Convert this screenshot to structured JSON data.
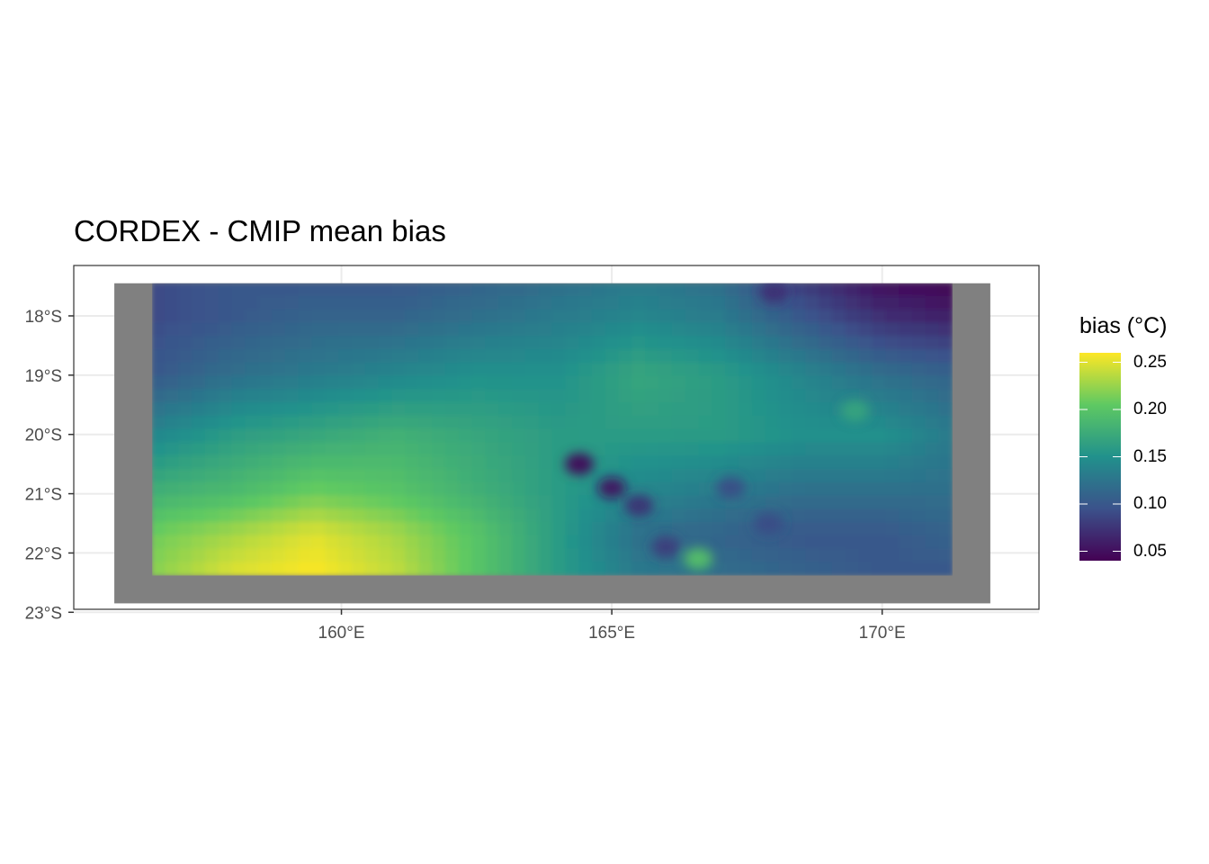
{
  "title": "CORDEX - CMIP mean bias",
  "legend": {
    "title": "bias (°C)",
    "min": 0.04,
    "max": 0.26,
    "breaks": [
      {
        "value": 0.25,
        "label": "0.25"
      },
      {
        "value": 0.2,
        "label": "0.20"
      },
      {
        "value": 0.15,
        "label": "0.15"
      },
      {
        "value": 0.1,
        "label": "0.10"
      },
      {
        "value": 0.05,
        "label": "0.05"
      }
    ],
    "palette": [
      "#440154",
      "#3b528b",
      "#21918c",
      "#5ec962",
      "#fde725"
    ]
  },
  "x_axis": {
    "ticks": [
      {
        "value": 160,
        "label": "160°E"
      },
      {
        "value": 165,
        "label": "165°E"
      },
      {
        "value": 170,
        "label": "170°E"
      }
    ]
  },
  "y_axis": {
    "ticks": [
      {
        "value": -18,
        "label": "18°S"
      },
      {
        "value": -19,
        "label": "19°S"
      },
      {
        "value": -20,
        "label": "20°S"
      },
      {
        "value": -21,
        "label": "21°S"
      },
      {
        "value": -22,
        "label": "22°S"
      },
      {
        "value": -23,
        "label": "23°S"
      }
    ]
  },
  "colors": {
    "masked": "#808080",
    "grid": "#ebebeb",
    "panel_border": "#333333"
  },
  "chart_data": {
    "type": "heatmap",
    "variable": "bias",
    "unit": "°C",
    "lon_range": [
      155.05,
      172.9
    ],
    "lat_range": [
      -22.95,
      -17.15
    ],
    "masked_extent": {
      "lon": [
        155.8,
        172.0
      ],
      "lat": [
        -22.85,
        -17.45
      ]
    },
    "data_extent": {
      "lon": [
        156.5,
        171.3
      ],
      "lat": [
        -22.38,
        -17.45
      ]
    },
    "value_grid": {
      "lons": [
        156.5,
        158.0,
        159.5,
        161.0,
        162.5,
        164.0,
        165.5,
        167.0,
        168.5,
        170.0,
        171.3
      ],
      "lats": [
        -17.45,
        -18.0,
        -19.0,
        -20.0,
        -21.0,
        -21.7,
        -22.38
      ],
      "values": [
        [
          0.09,
          0.1,
          0.1,
          0.1,
          0.11,
          0.12,
          0.13,
          0.12,
          0.08,
          0.05,
          0.04
        ],
        [
          0.09,
          0.1,
          0.11,
          0.11,
          0.12,
          0.13,
          0.14,
          0.13,
          0.1,
          0.07,
          0.06
        ],
        [
          0.1,
          0.12,
          0.13,
          0.14,
          0.15,
          0.15,
          0.17,
          0.16,
          0.14,
          0.12,
          0.11
        ],
        [
          0.14,
          0.16,
          0.17,
          0.18,
          0.17,
          0.16,
          0.16,
          0.16,
          0.15,
          0.15,
          0.13
        ],
        [
          0.18,
          0.19,
          0.21,
          0.2,
          0.18,
          0.16,
          0.14,
          0.13,
          0.12,
          0.12,
          0.12
        ],
        [
          0.21,
          0.23,
          0.25,
          0.23,
          0.2,
          0.16,
          0.12,
          0.11,
          0.1,
          0.1,
          0.11
        ],
        [
          0.22,
          0.25,
          0.26,
          0.24,
          0.2,
          0.16,
          0.13,
          0.12,
          0.11,
          0.1,
          0.1
        ]
      ]
    },
    "local_anomalies": [
      {
        "lon": 164.4,
        "lat": -20.5,
        "value": 0.04
      },
      {
        "lon": 165.0,
        "lat": -20.9,
        "value": 0.05
      },
      {
        "lon": 165.5,
        "lat": -21.2,
        "value": 0.07
      },
      {
        "lon": 166.0,
        "lat": -21.9,
        "value": 0.08
      },
      {
        "lon": 167.2,
        "lat": -20.9,
        "value": 0.09
      },
      {
        "lon": 167.9,
        "lat": -21.5,
        "value": 0.09
      },
      {
        "lon": 166.6,
        "lat": -22.1,
        "value": 0.2
      },
      {
        "lon": 169.5,
        "lat": -19.6,
        "value": 0.17
      },
      {
        "lon": 168.0,
        "lat": -17.6,
        "value": 0.07
      }
    ]
  }
}
